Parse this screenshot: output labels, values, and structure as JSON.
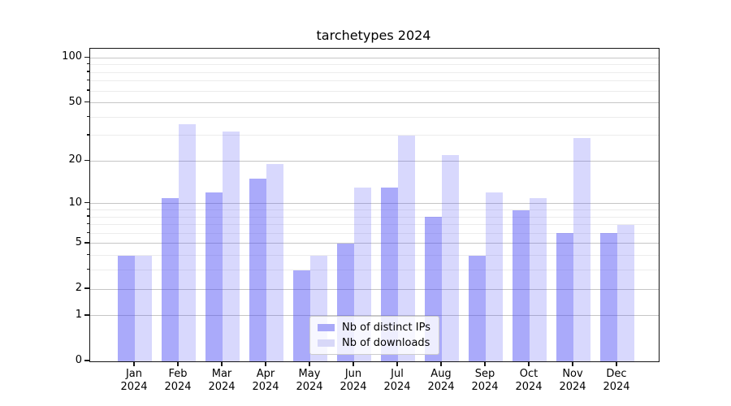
{
  "title": "tarchetypes 2024",
  "chart_data": {
    "type": "bar",
    "title": "tarchetypes 2024",
    "categories": [
      "Jan 2024",
      "Feb 2024",
      "Mar 2024",
      "Apr 2024",
      "May 2024",
      "Jun 2024",
      "Jul 2024",
      "Aug 2024",
      "Sep 2024",
      "Oct 2024",
      "Nov 2024",
      "Dec 2024"
    ],
    "series": [
      {
        "name": "Nb of distinct IPs",
        "values": [
          4,
          11,
          12,
          15,
          3,
          5,
          13,
          8,
          4,
          9,
          6,
          6
        ],
        "color": "#a9a9f8",
        "fill": "rgba(70,70,245,0.46)"
      },
      {
        "name": "Nb of downloads",
        "values": [
          4,
          36,
          32,
          19,
          4,
          13,
          30,
          22,
          12,
          11,
          29,
          7
        ],
        "color": "#d8d8f8",
        "fill": "rgba(70,70,245,0.21)"
      }
    ],
    "xlabel": "",
    "ylabel": "",
    "yscale": "log1p",
    "ylim": [
      0,
      115
    ],
    "yticks": [
      0,
      1,
      2,
      5,
      10,
      20,
      50,
      100
    ],
    "yticks_minor": [
      3,
      4,
      6,
      7,
      8,
      9,
      30,
      40,
      60,
      70,
      80,
      90
    ],
    "grid": true,
    "legend_position": "lower center"
  },
  "legend": {
    "items": [
      "Nb of distinct IPs",
      "Nb of downloads"
    ]
  }
}
